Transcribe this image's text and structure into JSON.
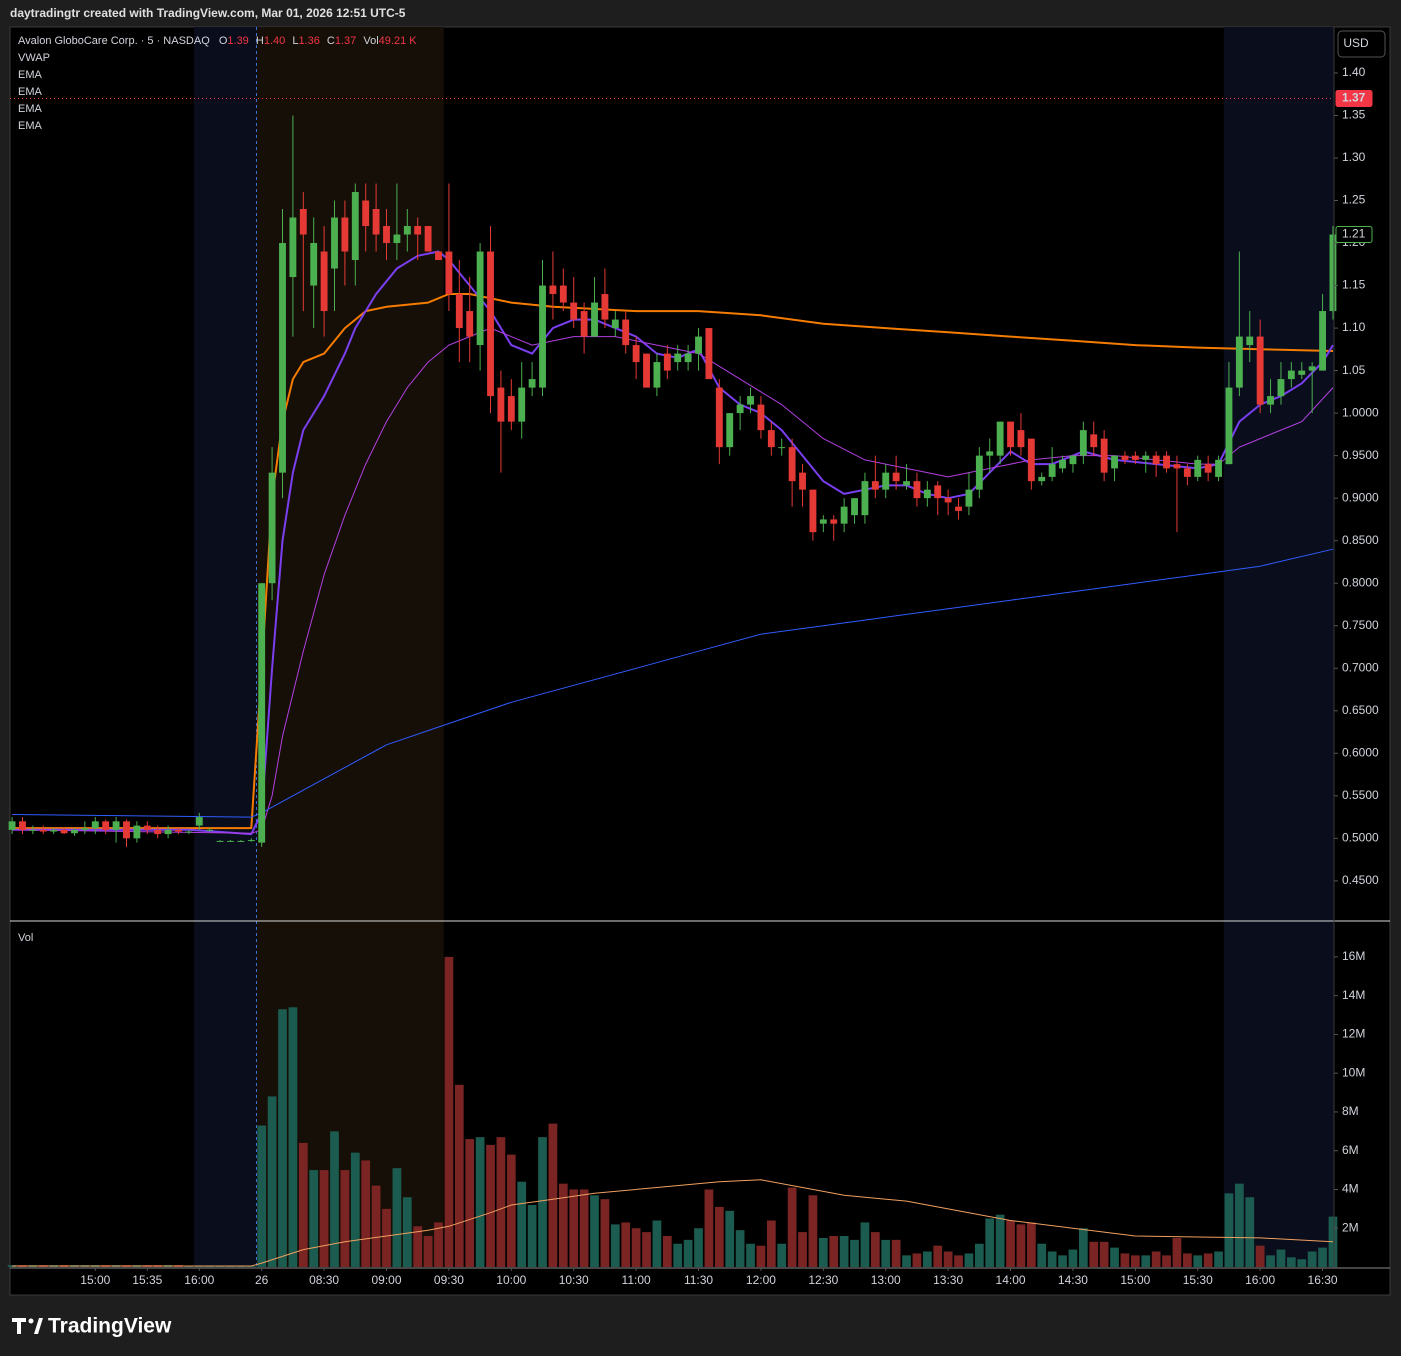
{
  "chart_data": {
    "type": "candlestick",
    "header": "daytradingtr created with TradingView.com, Mar 01, 2026 12:51 UTC-5",
    "title": "Avalon GloboCare Corp. · 5 · NASDAQ",
    "ohlc_labels": [
      "O",
      "H",
      "L",
      "C",
      "Vol"
    ],
    "ohlc_values": [
      1.39,
      {
        "value": 1.4,
        "label": "1.40"
      },
      1.36,
      1.37,
      {
        "value": 49.21,
        "label": "49.21 K"
      }
    ],
    "legend": [
      "VWAP",
      "EMA",
      "EMA",
      "EMA",
      "EMA"
    ],
    "currency": "USD",
    "brand": "TradingView",
    "up_color": "#4caf50",
    "down_color": "#e53935",
    "grid": false,
    "xlim": [
      -0.2,
      127.1
    ],
    "ylim": [
      0.404,
      1.454
    ],
    "xticks": [
      {
        "value": 8,
        "label": "15:00"
      },
      {
        "value": 13,
        "label": "15:35"
      },
      {
        "value": 18,
        "label": "16:00"
      },
      {
        "value": 24,
        "label": "26"
      },
      {
        "value": 30,
        "label": "08:30"
      },
      {
        "value": 36,
        "label": "09:00"
      },
      {
        "value": 42,
        "label": "09:30"
      },
      {
        "value": 48,
        "label": "10:00"
      },
      {
        "value": 54,
        "label": "10:30"
      },
      {
        "value": 60,
        "label": "11:00"
      },
      {
        "value": 66,
        "label": "11:30"
      },
      {
        "value": 72,
        "label": "12:00"
      },
      {
        "value": 78,
        "label": "12:30"
      },
      {
        "value": 84,
        "label": "13:00"
      },
      {
        "value": 90,
        "label": "13:30"
      },
      {
        "value": 96,
        "label": "14:00"
      },
      {
        "value": 102,
        "label": "14:30"
      },
      {
        "value": 108,
        "label": "15:00"
      },
      {
        "value": 114,
        "label": "15:30"
      },
      {
        "value": 120,
        "label": "16:00"
      },
      {
        "value": 126,
        "label": "16:30"
      }
    ],
    "yticks": [
      {
        "value": 1.4,
        "label": "1.40"
      },
      {
        "value": 1.35,
        "label": "1.35"
      },
      {
        "value": 1.3,
        "label": "1.30"
      },
      {
        "value": 1.25,
        "label": "1.25"
      },
      {
        "value": 1.2,
        "label": "1.20"
      },
      {
        "value": 1.15,
        "label": "1.15"
      },
      {
        "value": 1.1,
        "label": "1.10"
      },
      {
        "value": 1.05,
        "label": "1.05"
      },
      {
        "value": 1,
        "label": "1.0000"
      },
      {
        "value": 0.95,
        "label": "0.9500"
      },
      {
        "value": 0.9,
        "label": "0.9000"
      },
      {
        "value": 0.85,
        "label": "0.8500"
      },
      {
        "value": 0.8,
        "label": "0.8000"
      },
      {
        "value": 0.75,
        "label": "0.7500"
      },
      {
        "value": 0.7,
        "label": "0.7000"
      },
      {
        "value": 0.65,
        "label": "0.6500"
      },
      {
        "value": 0.6,
        "label": "0.6000"
      },
      {
        "value": 0.55,
        "label": "0.5500"
      },
      {
        "value": 0.5,
        "label": "0.5000"
      },
      {
        "value": 0.45,
        "label": "0.4500"
      }
    ],
    "last_price": 1.37,
    "last_bar_close": 1.21,
    "sessions": [
      {
        "from": 17.5,
        "to": 23.5,
        "color": "#0a0e1c"
      },
      {
        "from": 23.5,
        "to": 41.5,
        "color": "#160f07"
      },
      {
        "from": 116.5,
        "to": 127.1,
        "color": "#0a0e1c"
      }
    ],
    "day_separator": 23.5,
    "open": [
      0.51,
      0.52,
      0.51,
      0.51,
      0.508,
      0.51,
      0.506,
      0.51,
      0.512,
      0.52,
      0.51,
      0.52,
      0.5,
      0.515,
      0.51,
      0.505,
      0.51,
      0.508,
      0.515,
      0.51,
      0.497,
      0.497,
      0.497,
      0.497,
      0.495,
      0.8,
      0.93,
      1.16,
      1.24,
      1.15,
      1.19,
      1.17,
      1.23,
      1.18,
      1.25,
      1.24,
      1.22,
      1.2,
      1.21,
      1.22,
      1.22,
      1.19,
      1.19,
      1.14,
      1.12,
      1.08,
      1.19,
      1.03,
      1.02,
      0.99,
      1.03,
      1.03,
      1.15,
      1.15,
      1.13,
      1.12,
      1.09,
      1.14,
      1.1,
      1.11,
      1.08,
      1.07,
      1.03,
      1.07,
      1.06,
      1.06,
      1.07,
      1.1,
      1.03,
      0.96,
      1.0,
      1.01,
      1.01,
      0.98,
      0.96,
      0.96,
      0.93,
      0.91,
      0.87,
      0.875,
      0.87,
      0.88,
      0.88,
      0.92,
      0.91,
      0.93,
      0.915,
      0.92,
      0.9,
      0.915,
      0.9,
      0.89,
      0.89,
      0.91,
      0.95,
      0.95,
      0.99,
      0.98,
      0.97,
      0.92,
      0.925,
      0.935,
      0.94,
      0.95,
      0.975,
      0.97,
      0.935,
      0.95,
      0.95,
      0.945,
      0.95,
      0.95,
      0.94,
      0.935,
      0.925,
      0.94,
      0.925,
      0.94,
      1.03,
      1.08,
      1.09,
      1.01,
      1.02,
      1.04,
      1.045,
      1.05,
      1.05,
      1.12
    ],
    "high": [
      0.525,
      0.525,
      0.515,
      0.515,
      0.512,
      0.512,
      0.512,
      0.52,
      0.525,
      0.522,
      0.525,
      0.522,
      0.52,
      0.52,
      0.515,
      0.515,
      0.512,
      0.51,
      0.53,
      0.512,
      0.498,
      0.498,
      0.498,
      0.5,
      0.8,
      0.96,
      1.24,
      1.35,
      1.26,
      1.23,
      1.22,
      1.25,
      1.25,
      1.27,
      1.27,
      1.27,
      1.24,
      1.27,
      1.24,
      1.23,
      1.22,
      1.19,
      1.27,
      1.18,
      1.16,
      1.2,
      1.22,
      1.05,
      1.04,
      1.06,
      1.06,
      1.18,
      1.19,
      1.17,
      1.16,
      1.13,
      1.16,
      1.17,
      1.12,
      1.12,
      1.09,
      1.07,
      1.07,
      1.08,
      1.08,
      1.08,
      1.1,
      1.1,
      1.04,
      1.0,
      1.02,
      1.03,
      1.02,
      0.99,
      0.97,
      0.97,
      0.94,
      0.91,
      0.88,
      0.88,
      0.9,
      0.9,
      0.93,
      0.95,
      0.94,
      0.95,
      0.94,
      0.93,
      0.92,
      0.92,
      0.91,
      0.9,
      0.93,
      0.96,
      0.97,
      0.99,
      0.99,
      1.0,
      0.97,
      0.93,
      0.96,
      0.95,
      0.95,
      0.99,
      0.99,
      0.98,
      0.95,
      0.955,
      0.955,
      0.955,
      0.955,
      0.955,
      0.95,
      0.94,
      0.95,
      0.95,
      0.95,
      1.06,
      1.19,
      1.12,
      1.11,
      1.04,
      1.06,
      1.06,
      1.06,
      1.06,
      1.14,
      1.22
    ],
    "low": [
      0.505,
      0.505,
      0.505,
      0.505,
      0.505,
      0.505,
      0.503,
      0.505,
      0.505,
      0.505,
      0.495,
      0.49,
      0.495,
      0.505,
      0.5,
      0.5,
      0.505,
      0.505,
      0.51,
      0.508,
      0.496,
      0.496,
      0.496,
      0.496,
      0.49,
      0.78,
      0.9,
      1.09,
      1.12,
      1.1,
      1.09,
      1.12,
      1.15,
      1.15,
      1.19,
      1.19,
      1.18,
      1.18,
      1.19,
      1.18,
      1.19,
      1.18,
      1.12,
      1.06,
      1.06,
      1.05,
      1.0,
      0.93,
      0.98,
      0.97,
      1.02,
      1.02,
      1.11,
      1.12,
      1.1,
      1.07,
      1.09,
      1.1,
      1.09,
      1.07,
      1.04,
      1.03,
      1.02,
      1.04,
      1.05,
      1.05,
      1.05,
      1.04,
      0.94,
      0.95,
      0.98,
      1.0,
      0.97,
      0.95,
      0.95,
      0.89,
      0.89,
      0.85,
      0.86,
      0.85,
      0.86,
      0.87,
      0.87,
      0.9,
      0.9,
      0.91,
      0.91,
      0.89,
      0.89,
      0.88,
      0.88,
      0.875,
      0.88,
      0.9,
      0.93,
      0.94,
      0.95,
      0.95,
      0.91,
      0.915,
      0.92,
      0.93,
      0.93,
      0.94,
      0.95,
      0.92,
      0.92,
      0.94,
      0.94,
      0.93,
      0.925,
      0.93,
      0.86,
      0.915,
      0.92,
      0.92,
      0.92,
      0.94,
      1.02,
      1.06,
      1.0,
      1.0,
      1.01,
      1.03,
      1.04,
      1.0,
      1.05,
      1.11
    ],
    "close": [
      0.52,
      0.51,
      0.51,
      0.508,
      0.51,
      0.506,
      0.51,
      0.512,
      0.52,
      0.51,
      0.52,
      0.5,
      0.515,
      0.51,
      0.505,
      0.51,
      0.508,
      0.508,
      0.525,
      0.51,
      0.497,
      0.497,
      0.497,
      0.498,
      0.8,
      0.93,
      1.2,
      1.23,
      1.21,
      1.2,
      1.12,
      1.23,
      1.19,
      1.26,
      1.22,
      1.21,
      1.2,
      1.21,
      1.22,
      1.21,
      1.19,
      1.18,
      1.14,
      1.1,
      1.09,
      1.19,
      1.02,
      0.99,
      0.99,
      1.03,
      1.04,
      1.15,
      1.14,
      1.13,
      1.11,
      1.09,
      1.13,
      1.11,
      1.11,
      1.08,
      1.06,
      1.03,
      1.06,
      1.05,
      1.07,
      1.07,
      1.09,
      1.04,
      0.96,
      1.0,
      1.01,
      1.02,
      0.98,
      0.96,
      0.96,
      0.92,
      0.91,
      0.86,
      0.875,
      0.87,
      0.89,
      0.9,
      0.92,
      0.91,
      0.93,
      0.92,
      0.92,
      0.9,
      0.91,
      0.9,
      0.895,
      0.885,
      0.91,
      0.95,
      0.955,
      0.99,
      0.96,
      0.96,
      0.92,
      0.925,
      0.94,
      0.945,
      0.95,
      0.98,
      0.96,
      0.93,
      0.95,
      0.945,
      0.945,
      0.95,
      0.94,
      0.935,
      0.935,
      0.925,
      0.945,
      0.93,
      0.945,
      1.03,
      1.09,
      1.09,
      1.01,
      1.02,
      1.04,
      1.05,
      1.05,
      1.055,
      1.12,
      1.21
    ],
    "lines": [
      {
        "color": "#f57c00",
        "width": 2,
        "x": [
          0,
          23,
          24,
          25,
          26,
          27,
          28,
          30,
          32,
          34,
          36,
          40,
          42,
          44,
          48,
          52,
          60,
          66,
          72,
          78,
          84,
          90,
          96,
          102,
          108,
          114,
          120,
          127
        ],
        "values": [
          0.512,
          0.512,
          0.7,
          0.9,
          0.99,
          1.04,
          1.06,
          1.07,
          1.1,
          1.12,
          1.125,
          1.13,
          1.14,
          1.14,
          1.13,
          1.125,
          1.12,
          1.12,
          1.115,
          1.105,
          1.1,
          1.095,
          1.09,
          1.085,
          1.08,
          1.077,
          1.075,
          1.073
        ]
      },
      {
        "color": "#7b3ff2",
        "width": 2,
        "x": [
          0,
          17,
          23,
          24,
          25,
          26,
          27,
          28,
          30,
          32,
          33,
          35,
          37,
          39,
          41,
          42,
          44,
          46,
          48,
          50,
          52,
          54,
          56,
          58,
          60,
          62,
          64,
          66,
          68,
          70,
          72,
          74,
          76,
          78,
          80,
          82,
          84,
          86,
          88,
          90,
          92,
          94,
          96,
          98,
          100,
          103,
          106,
          110,
          114,
          116,
          118,
          120,
          122,
          124,
          126,
          127
        ],
        "values": [
          0.51,
          0.51,
          0.505,
          0.53,
          0.7,
          0.85,
          0.93,
          0.98,
          1.02,
          1.07,
          1.1,
          1.14,
          1.17,
          1.185,
          1.19,
          1.18,
          1.15,
          1.12,
          1.08,
          1.07,
          1.1,
          1.11,
          1.11,
          1.1,
          1.09,
          1.07,
          1.065,
          1.075,
          1.03,
          1.01,
          1.0,
          0.98,
          0.95,
          0.92,
          0.905,
          0.91,
          0.915,
          0.915,
          0.905,
          0.9,
          0.905,
          0.93,
          0.955,
          0.94,
          0.94,
          0.955,
          0.945,
          0.94,
          0.935,
          0.94,
          0.99,
          1.01,
          1.02,
          1.035,
          1.06,
          1.08
        ]
      },
      {
        "color": "#b23fe0",
        "width": 1,
        "x": [
          0,
          23,
          24,
          25,
          26,
          28,
          30,
          32,
          34,
          36,
          38,
          40,
          42,
          44,
          46,
          50,
          54,
          58,
          62,
          66,
          70,
          74,
          78,
          82,
          86,
          90,
          94,
          98,
          102,
          106,
          110,
          114,
          116,
          118,
          120,
          124,
          127
        ],
        "values": [
          0.51,
          0.506,
          0.51,
          0.55,
          0.62,
          0.72,
          0.81,
          0.88,
          0.94,
          0.99,
          1.03,
          1.06,
          1.08,
          1.09,
          1.1,
          1.08,
          1.09,
          1.09,
          1.08,
          1.07,
          1.04,
          1.01,
          0.97,
          0.945,
          0.935,
          0.925,
          0.935,
          0.945,
          0.95,
          0.95,
          0.945,
          0.94,
          0.94,
          0.96,
          0.97,
          0.99,
          1.03
        ]
      },
      {
        "color": "#2f5cff",
        "width": 1,
        "x": [
          0,
          23,
          24,
          30,
          36,
          42,
          48,
          54,
          60,
          66,
          72,
          78,
          84,
          90,
          96,
          102,
          108,
          114,
          120,
          127
        ],
        "values": [
          0.528,
          0.525,
          0.53,
          0.57,
          0.61,
          0.635,
          0.66,
          0.68,
          0.7,
          0.72,
          0.74,
          0.75,
          0.76,
          0.77,
          0.78,
          0.79,
          0.8,
          0.81,
          0.82,
          0.84
        ]
      }
    ],
    "volume": {
      "name": "Vol",
      "up_color": "#1c5b4f",
      "down_color": "#7a2424",
      "ylim": [
        0,
        17.8
      ],
      "yticks": [
        {
          "value": 2,
          "label": "2M"
        },
        {
          "value": 4,
          "label": "4M"
        },
        {
          "value": 6,
          "label": "6M"
        },
        {
          "value": 8,
          "label": "8M"
        },
        {
          "value": 10,
          "label": "10M"
        },
        {
          "value": 12,
          "label": "12M"
        },
        {
          "value": 14,
          "label": "14M"
        },
        {
          "value": 16,
          "label": "16M"
        }
      ],
      "values": [
        0.1,
        0.1,
        0.1,
        0.1,
        0.1,
        0.1,
        0.1,
        0.1,
        0.1,
        0.1,
        0.1,
        0.1,
        0.1,
        0.1,
        0.1,
        0.1,
        0.1,
        0.05,
        0.05,
        0.05,
        0.05,
        0.05,
        0.05,
        0.05,
        7.3,
        8.8,
        13.3,
        13.4,
        6.4,
        5.0,
        5.0,
        7.0,
        5.0,
        5.9,
        5.5,
        4.2,
        3.0,
        5.1,
        3.6,
        2.1,
        1.6,
        2.3,
        16.0,
        9.4,
        6.6,
        6.7,
        6.3,
        6.7,
        5.8,
        4.4,
        3.2,
        6.7,
        7.4,
        4.3,
        4.0,
        4.0,
        3.7,
        3.5,
        2.2,
        2.3,
        2.0,
        1.8,
        2.4,
        1.6,
        1.2,
        1.4,
        2.0,
        4.0,
        3.1,
        2.9,
        1.9,
        1.2,
        1.1,
        2.4,
        1.2,
        4.1,
        1.8,
        3.7,
        1.5,
        1.6,
        1.6,
        1.4,
        2.3,
        1.8,
        1.4,
        1.4,
        0.6,
        0.7,
        0.8,
        1.1,
        0.8,
        0.6,
        0.7,
        1.2,
        2.5,
        2.7,
        2.4,
        2.2,
        2.3,
        1.2,
        0.8,
        0.6,
        0.9,
        2.0,
        1.3,
        1.3,
        1.0,
        0.7,
        0.6,
        0.6,
        0.8,
        0.6,
        1.5,
        0.7,
        0.6,
        0.7,
        0.8,
        3.8,
        4.3,
        3.6,
        1.1,
        0.6,
        0.9,
        0.5,
        0.4,
        0.8,
        1.0,
        2.6
      ],
      "ma": {
        "color": "#f0a060",
        "x": [
          0,
          23,
          24,
          28,
          32,
          36,
          40,
          42,
          46,
          48,
          52,
          56,
          62,
          68,
          72,
          76,
          80,
          86,
          90,
          96,
          102,
          108,
          114,
          120,
          127
        ],
        "values": [
          0.05,
          0.05,
          0.2,
          0.9,
          1.3,
          1.6,
          1.9,
          2.1,
          2.8,
          3.2,
          3.5,
          3.8,
          4.1,
          4.4,
          4.5,
          4.1,
          3.7,
          3.4,
          3.0,
          2.4,
          2.0,
          1.6,
          1.55,
          1.5,
          1.3
        ]
      }
    }
  }
}
